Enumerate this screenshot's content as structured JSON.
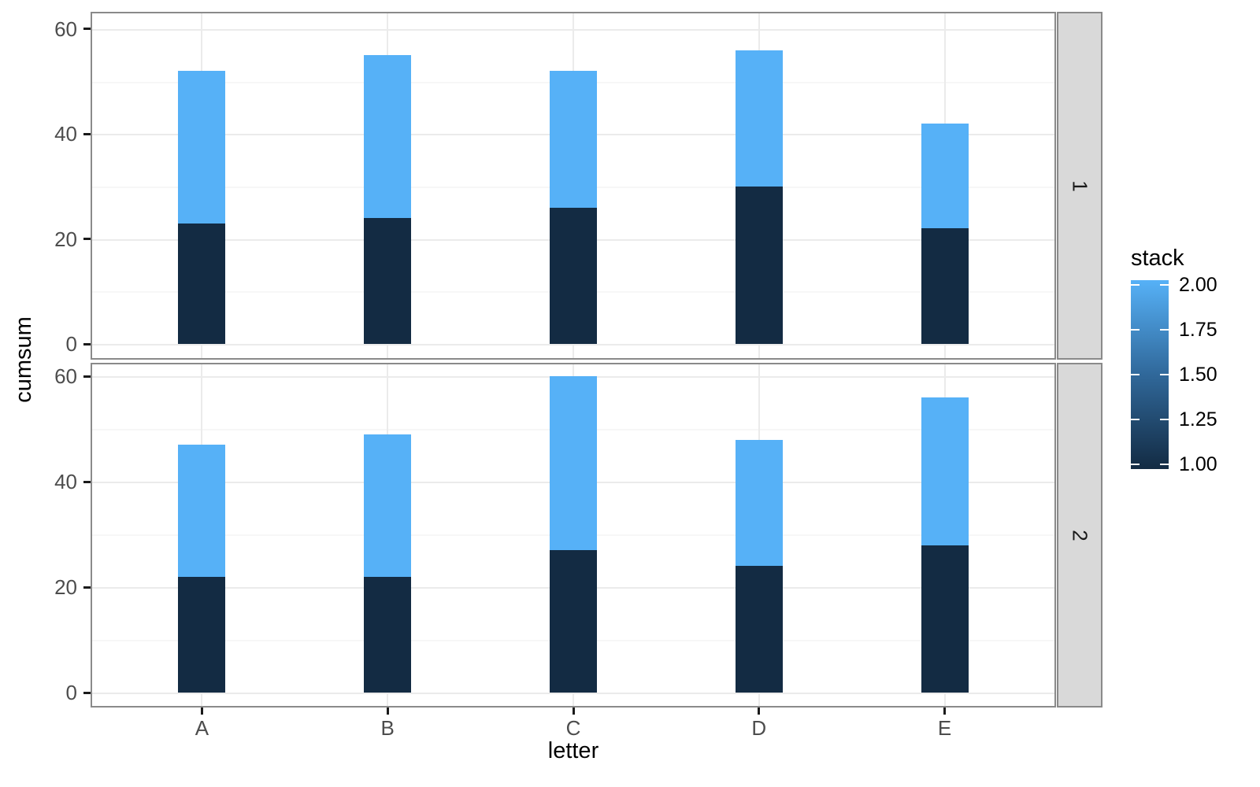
{
  "chart_data": {
    "type": "bar",
    "stacked": true,
    "xlabel": "letter",
    "ylabel": "cumsum",
    "categories": [
      "A",
      "B",
      "C",
      "D",
      "E"
    ],
    "facets": [
      {
        "label": "1",
        "series": [
          {
            "name": "stack 1",
            "values": [
              23,
              24,
              26,
              30,
              22
            ]
          },
          {
            "name": "stack 2",
            "values": [
              29,
              31,
              26,
              26,
              20
            ]
          }
        ],
        "totals": [
          52,
          55,
          52,
          56,
          42
        ]
      },
      {
        "label": "2",
        "series": [
          {
            "name": "stack 1",
            "values": [
              22,
              22,
              27,
              24,
              28
            ]
          },
          {
            "name": "stack 2",
            "values": [
              25,
              27,
              33,
              24,
              28
            ]
          }
        ],
        "totals": [
          47,
          49,
          60,
          48,
          56
        ]
      }
    ],
    "y_ticks": [
      0,
      20,
      40,
      60
    ],
    "y_tick_labels": [
      "0",
      "20",
      "40",
      "60"
    ],
    "y_minor_ticks": [
      10,
      30,
      50
    ],
    "ylim": [
      -3,
      63.3
    ],
    "grid": true,
    "legend": {
      "title": "stack",
      "position": "right",
      "type": "colorbar",
      "tick_labels": [
        "2.00",
        "1.75",
        "1.50",
        "1.25",
        "1.00"
      ],
      "tick_values": [
        2.0,
        1.75,
        1.5,
        1.25,
        1.0
      ],
      "bar_range": [
        0.975,
        2.025
      ],
      "color_high": "#56B1F7",
      "color_mid": "#30689A",
      "color_low": "#132B43"
    },
    "colors": {
      "segment_low": "#132B43",
      "segment_high": "#56B1F7",
      "axis_text": "#4d4d4d",
      "grid_major": "#ebebeb",
      "grid_minor": "#f7f7f7",
      "panel_border": "#8a8a8a",
      "strip_background": "#d9d9d9"
    }
  }
}
